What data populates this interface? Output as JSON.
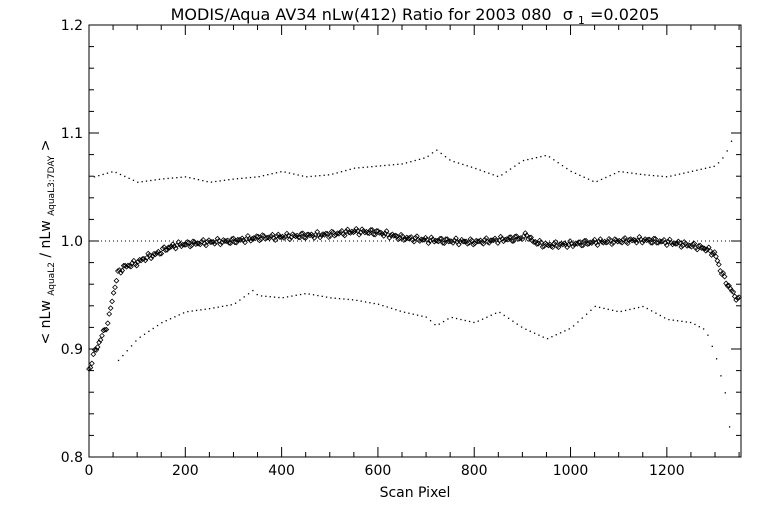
{
  "chart_data": {
    "type": "scatter",
    "title": "MODIS/Aqua AV34 nLw(412) Ratio for 2003 080",
    "title_sigma_label": "σ",
    "title_sigma_sub": "1",
    "title_sigma_value": "=0.0205",
    "xlabel": "Scan Pixel",
    "ylabel": {
      "lt": "<",
      "part1": "nLw",
      "sub1": "AquaL2",
      "slash": "/",
      "part2": "nLw",
      "sub2": "AquaL3:7DAY",
      "gt": ">"
    },
    "xlim": [
      0,
      1354
    ],
    "ylim": [
      0.8,
      1.2
    ],
    "xticks": [
      0,
      200,
      400,
      600,
      800,
      1000,
      1200
    ],
    "xtick_labels": [
      "0",
      "200",
      "400",
      "600",
      "800",
      "1000",
      "1200"
    ],
    "yticks": [
      0.8,
      0.9,
      1.0,
      1.1,
      1.2
    ],
    "ytick_labels": [
      "0.8",
      "0.9",
      "1.0",
      "1.1",
      "1.2"
    ],
    "reference_line": 1.0,
    "grid": false,
    "legend": "none",
    "series": [
      {
        "marker": "diamond",
        "x": [
          0,
          10,
          20,
          30,
          40,
          50,
          60,
          70,
          80,
          100,
          120,
          140,
          160,
          180,
          200,
          250,
          300,
          350,
          400,
          450,
          500,
          550,
          600,
          650,
          700,
          750,
          800,
          850,
          900,
          910,
          920,
          950,
          1000,
          1050,
          1100,
          1150,
          1200,
          1250,
          1280,
          1300,
          1310,
          1320,
          1330,
          1340,
          1350
        ],
        "y": [
          0.88,
          0.895,
          0.905,
          0.915,
          0.925,
          0.95,
          0.97,
          0.975,
          0.977,
          0.98,
          0.985,
          0.988,
          0.993,
          0.996,
          0.997,
          0.999,
          1.0,
          1.003,
          1.004,
          1.005,
          1.006,
          1.009,
          1.008,
          1.003,
          1.001,
          1.0,
          0.999,
          1.001,
          1.003,
          1.006,
          1.0,
          0.996,
          0.997,
          0.999,
          1.0,
          1.001,
          0.999,
          0.996,
          0.993,
          0.988,
          0.975,
          0.965,
          0.957,
          0.95,
          0.945
        ]
      },
      {
        "marker": "dot",
        "x": [
          10,
          50,
          100,
          150,
          200,
          250,
          300,
          350,
          400,
          450,
          500,
          550,
          600,
          650,
          700,
          720,
          750,
          800,
          850,
          900,
          950,
          1000,
          1050,
          1100,
          1150,
          1200,
          1250,
          1300,
          1320,
          1330,
          1340
        ],
        "y": [
          1.06,
          1.065,
          1.055,
          1.058,
          1.06,
          1.055,
          1.058,
          1.06,
          1.065,
          1.06,
          1.062,
          1.068,
          1.07,
          1.072,
          1.078,
          1.085,
          1.075,
          1.068,
          1.06,
          1.075,
          1.08,
          1.065,
          1.055,
          1.065,
          1.062,
          1.06,
          1.065,
          1.07,
          1.08,
          1.09,
          1.1
        ]
      },
      {
        "marker": "dot",
        "x": [
          60,
          100,
          150,
          200,
          250,
          300,
          340,
          350,
          400,
          450,
          500,
          550,
          600,
          650,
          700,
          720,
          750,
          800,
          850,
          900,
          950,
          1000,
          1050,
          1100,
          1150,
          1200,
          1250,
          1280,
          1300,
          1320,
          1330
        ],
        "y": [
          0.89,
          0.91,
          0.925,
          0.935,
          0.938,
          0.942,
          0.955,
          0.95,
          0.948,
          0.952,
          0.948,
          0.946,
          0.942,
          0.935,
          0.93,
          0.922,
          0.93,
          0.925,
          0.935,
          0.92,
          0.91,
          0.92,
          0.94,
          0.935,
          0.94,
          0.928,
          0.925,
          0.918,
          0.895,
          0.86,
          0.825
        ]
      }
    ]
  }
}
